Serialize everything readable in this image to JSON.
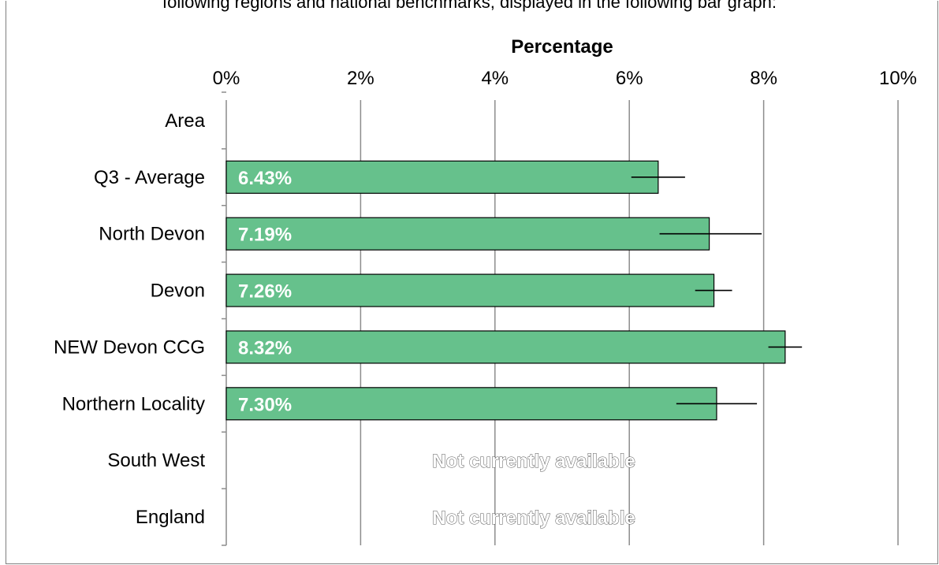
{
  "caption": "following regions and national benchmarks, displayed in the following bar graph:",
  "chart_data": {
    "type": "bar",
    "orientation": "horizontal",
    "xlabel": "Percentage",
    "xlim": [
      0,
      10
    ],
    "x_ticks": [
      "0%",
      "2%",
      "4%",
      "6%",
      "8%",
      "10%"
    ],
    "grid": true,
    "bar_color": "#66c18c",
    "categories": [
      "Area",
      "Q3 - Average",
      "North Devon",
      "Devon",
      "NEW Devon CCG",
      "Northern Locality",
      "South West",
      "England"
    ],
    "values": [
      null,
      6.43,
      7.19,
      7.26,
      8.32,
      7.3,
      null,
      null
    ],
    "value_labels": [
      "",
      "6.43%",
      "7.19%",
      "7.26%",
      "8.32%",
      "7.30%",
      "",
      ""
    ],
    "error_low": [
      null,
      6.03,
      6.45,
      6.98,
      8.07,
      6.7,
      null,
      null
    ],
    "error_high": [
      null,
      6.83,
      7.97,
      7.53,
      8.57,
      7.9,
      null,
      null
    ],
    "unavailable_text": [
      "",
      "",
      "",
      "",
      "",
      "",
      "Not currently available",
      "Not currently available"
    ]
  }
}
